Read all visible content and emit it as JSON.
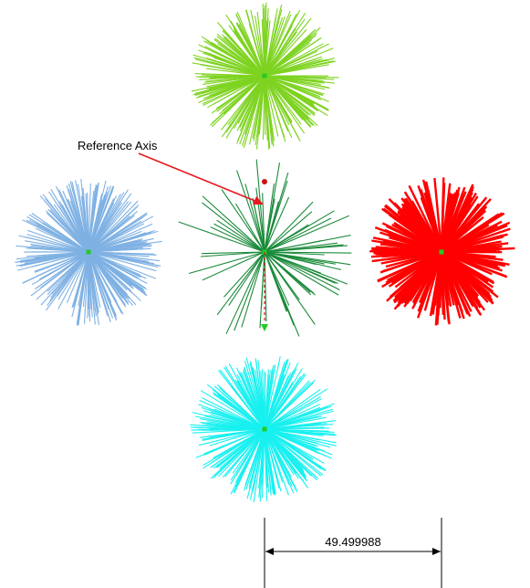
{
  "annotation": {
    "label": "Reference Axis",
    "arrow_color": "#e8191f"
  },
  "dimension": {
    "value_text": "49.499988",
    "line_color": "#000000"
  },
  "center_marker_color": "#22cc22",
  "reference_axis": {
    "top_dot_color": "#cc1111",
    "arrow_color": "#22cc22",
    "line_color": "#cc1111"
  },
  "bursts": [
    {
      "name": "top-burst",
      "color": "#7ed321",
      "style": "fine"
    },
    {
      "name": "left-burst",
      "color": "#7fb1e3",
      "style": "fine"
    },
    {
      "name": "center-burst",
      "color": "#1a8a3a",
      "style": "sparse"
    },
    {
      "name": "right-burst",
      "color": "#ff0000",
      "style": "thick"
    },
    {
      "name": "bottom-burst",
      "color": "#19f0f0",
      "style": "fine"
    }
  ]
}
